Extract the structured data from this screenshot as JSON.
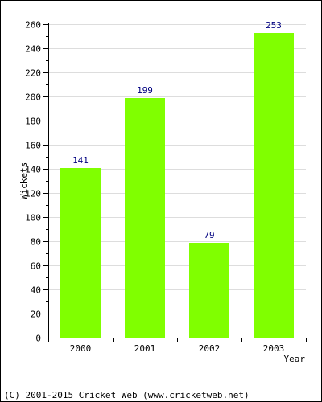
{
  "chart_data": {
    "type": "bar",
    "title": "",
    "xlabel": "Year",
    "ylabel": "Wickets",
    "categories": [
      "2000",
      "2001",
      "2002",
      "2003"
    ],
    "values": [
      141,
      199,
      79,
      253
    ],
    "ylim": [
      0,
      260
    ],
    "yticks": [
      0,
      20,
      40,
      60,
      80,
      100,
      120,
      140,
      160,
      180,
      200,
      220,
      240,
      260
    ],
    "y_minor_step": 10,
    "grid": true,
    "legend": "none",
    "data_labels": true,
    "colors": {
      "bar": "#80ff00",
      "data_label": "#000080",
      "grid": "#dddddd",
      "axis": "#000000",
      "text": "#000000"
    }
  },
  "footer": {
    "copyright": "(C) 2001-2015 Cricket Web (www.cricketweb.net)"
  }
}
